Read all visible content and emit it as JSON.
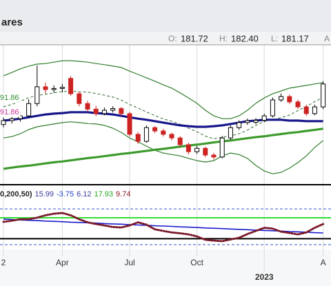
{
  "chart_data": [
    {
      "type": "candlestick",
      "title": "ares",
      "quote": [
        {
          "name": "O:",
          "value": 181.72
        },
        {
          "name": "H:",
          "value": 182.4,
          "label": "182.40"
        },
        {
          "name": "L:",
          "value": 181.17
        }
      ],
      "quote_more": "A",
      "categories": [
        "2",
        null,
        null,
        null,
        null,
        null,
        null,
        "Apr",
        null,
        null,
        null,
        null,
        null,
        null,
        null,
        "Jul",
        null,
        null,
        null,
        null,
        null,
        null,
        null,
        "Oct",
        null,
        null,
        null,
        null,
        null,
        null,
        null,
        null,
        null,
        null,
        null,
        null,
        null,
        null,
        "A"
      ],
      "years": [
        null,
        null,
        null,
        null,
        null,
        null,
        null,
        null,
        null,
        null,
        null,
        null,
        null,
        null,
        null,
        null,
        null,
        null,
        null,
        null,
        null,
        null,
        null,
        null,
        null,
        null,
        null,
        null,
        null,
        null,
        null,
        "2023",
        null,
        null,
        null,
        null,
        null,
        null,
        null
      ],
      "open": [
        166.5,
        167.9,
        168.6,
        169.6,
        174.0,
        180.0,
        179.0,
        179.4,
        183.0,
        177.5,
        174.0,
        172.0,
        170.4,
        171.6,
        172.2,
        170.4,
        163.0,
        160.5,
        165.4,
        164.2,
        163.0,
        161.7,
        159.3,
        156.8,
        158.0,
        155.6,
        154.9,
        161.7,
        165.4,
        167.2,
        167.3,
        168.0,
        169.6,
        175.3,
        176.5,
        174.6,
        172.8,
        170.4,
        172.8
      ],
      "high": [
        169.0,
        169.5,
        171.0,
        175.5,
        187.6,
        181.5,
        180.5,
        181.0,
        183.8,
        178.2,
        175.0,
        173.2,
        172.6,
        173.0,
        172.8,
        171.0,
        163.8,
        166.2,
        166.0,
        165.0,
        163.6,
        162.4,
        160.0,
        158.8,
        158.6,
        156.4,
        162.4,
        166.2,
        168.0,
        168.6,
        168.8,
        170.4,
        176.2,
        177.6,
        177.2,
        175.4,
        173.6,
        173.6,
        182.0
      ],
      "low": [
        165.5,
        166.8,
        167.5,
        169.0,
        173.0,
        177.5,
        177.8,
        178.0,
        176.8,
        173.0,
        171.0,
        169.5,
        169.8,
        170.8,
        169.6,
        162.2,
        159.6,
        160.0,
        163.4,
        162.2,
        160.8,
        158.4,
        155.8,
        156.0,
        154.8,
        154.0,
        154.4,
        161.0,
        164.6,
        166.4,
        166.6,
        167.4,
        169.0,
        174.6,
        173.8,
        172.0,
        169.6,
        169.8,
        172.0
      ],
      "close": [
        167.9,
        168.6,
        169.6,
        174.0,
        180.0,
        179.0,
        179.4,
        179.8,
        177.5,
        174.0,
        172.0,
        170.4,
        171.6,
        172.2,
        170.4,
        163.0,
        160.5,
        165.4,
        164.2,
        163.0,
        161.7,
        159.3,
        156.8,
        158.0,
        155.6,
        154.9,
        161.7,
        165.4,
        167.2,
        167.9,
        168.0,
        169.6,
        175.3,
        176.5,
        174.6,
        172.8,
        170.4,
        172.8,
        181.0
      ],
      "up_color": "#000000",
      "down_color": "#cc2222",
      "overlays": [
        {
          "color": "#2f7d2a",
          "style": "thin",
          "values": [
            183.9,
            185.1,
            186.4,
            187.4,
            188.1,
            188.3,
            188.8,
            189.3,
            189.3,
            189.1,
            188.8,
            188.3,
            187.9,
            187.4,
            186.9,
            185.6,
            184.4,
            183.2,
            182.0,
            180.7,
            179.5,
            177.8,
            176.0,
            174.1,
            171.6,
            169.6,
            168.6,
            168.6,
            169.6,
            171.6,
            174.1,
            176.0,
            177.5,
            178.5,
            179.5,
            180.0,
            180.5,
            181.0,
            181.5
          ]
        },
        {
          "color": "#2f7d2a",
          "style": "thin",
          "values": [
            161.7,
            162.2,
            163.2,
            164.7,
            165.7,
            166.2,
            166.7,
            167.2,
            167.5,
            167.2,
            166.9,
            166.7,
            166.2,
            165.2,
            163.7,
            161.7,
            160.3,
            158.8,
            157.3,
            156.3,
            155.8,
            155.3,
            154.4,
            153.6,
            153.1,
            153.6,
            155.3,
            156.3,
            155.8,
            154.4,
            151.9,
            149.9,
            148.9,
            149.4,
            150.9,
            152.9,
            155.3,
            158.3,
            160.8
          ]
        },
        {
          "color": "#2f6b2f",
          "style": "dashed",
          "values": [
            172.8,
            173.7,
            174.8,
            176.1,
            176.9,
            177.3,
            177.8,
            178.3,
            178.4,
            178.2,
            178.1,
            177.6,
            177.0,
            176.3,
            175.3,
            173.7,
            172.4,
            171.0,
            169.7,
            168.5,
            167.7,
            166.6,
            165.2,
            163.9,
            162.4,
            161.4,
            162.0,
            162.5,
            163.2,
            164.5,
            166.2,
            167.6,
            168.2,
            169.0,
            169.9,
            171.5,
            172.9,
            174.7,
            176.2
          ]
        },
        {
          "color": "#16168a",
          "style": "thick",
          "values": [
            167.9,
            168.2,
            168.6,
            169.1,
            169.6,
            170.1,
            170.4,
            170.6,
            170.9,
            170.9,
            170.9,
            170.6,
            170.4,
            170.1,
            169.6,
            169.1,
            168.6,
            168.2,
            167.7,
            167.2,
            166.7,
            166.2,
            165.9,
            165.7,
            165.7,
            165.9,
            166.2,
            166.7,
            167.2,
            167.7,
            167.9,
            168.2,
            168.2,
            168.2,
            167.9,
            167.9,
            167.7,
            167.7,
            167.7
          ]
        },
        {
          "color": "#3c9a2c",
          "style": "thick",
          "values": [
            150.7,
            151.1,
            151.5,
            151.8,
            152.2,
            152.6,
            153.0,
            153.3,
            153.7,
            154.1,
            154.5,
            154.8,
            155.2,
            155.6,
            156.0,
            156.3,
            156.7,
            157.1,
            157.5,
            157.8,
            158.2,
            158.6,
            159.0,
            159.3,
            159.7,
            160.1,
            160.5,
            160.8,
            161.2,
            161.6,
            162.0,
            162.3,
            162.7,
            163.1,
            163.5,
            163.8,
            164.2,
            164.6,
            165.0
          ]
        }
      ],
      "annotations": [
        {
          "text": "91.86",
          "color": "#2e8b2e"
        },
        {
          "text": "91.86",
          "color": "#cc3399"
        }
      ],
      "ylim": [
        145,
        195
      ],
      "grid": true
    },
    {
      "type": "oscillator",
      "label": "0,200,50)",
      "readings": {
        "values": [
          15.99,
          -3.75,
          6.12,
          17.93,
          9.74
        ],
        "colors": [
          "#3a3aa0",
          "#2244cc",
          "#3a3aa0",
          "#22aa22",
          "#8a1a2a"
        ]
      },
      "series": [
        {
          "color": "#1a1acc",
          "style": "solid",
          "values": [
            12.5,
            12.3,
            12.0,
            11.8,
            11.6,
            11.3,
            11.1,
            10.9,
            10.6,
            10.4,
            10.2,
            10.0,
            9.7,
            9.5,
            9.3,
            9.0,
            8.8,
            8.6,
            8.3,
            8.1,
            7.9,
            7.6,
            7.4,
            7.2,
            6.9,
            6.7,
            6.5,
            6.2,
            6.0,
            5.8,
            5.5,
            5.3,
            5.1,
            4.9,
            4.6,
            4.4,
            4.2,
            3.9,
            3.7
          ]
        },
        {
          "color": "#7a1a2a",
          "style": "dotted",
          "values": [
            10.8,
            11.5,
            12.5,
            12.5,
            13.5,
            15,
            16,
            16.5,
            15,
            12.5,
            10.5,
            9.4,
            8.5,
            7.5,
            7.2,
            8.5,
            10.5,
            9,
            6,
            5,
            4,
            3.5,
            2.8,
            1.5,
            -0.7,
            -1.2,
            -1.6,
            -0.5,
            0.6,
            3,
            5,
            7,
            6.5,
            4.5,
            3.7,
            2.8,
            4,
            7,
            9.4
          ]
        }
      ],
      "reference_lines": [
        {
          "value": 19.1,
          "color": "#3355cc",
          "style": "dashed"
        },
        {
          "value": -3.8,
          "color": "#3355cc",
          "style": "dashed"
        },
        {
          "value": 13.4,
          "color": "#33dd33",
          "style": "thick"
        },
        {
          "value": 0,
          "color": "#000000",
          "style": "thick"
        }
      ],
      "ylim": [
        -6,
        24
      ]
    }
  ]
}
